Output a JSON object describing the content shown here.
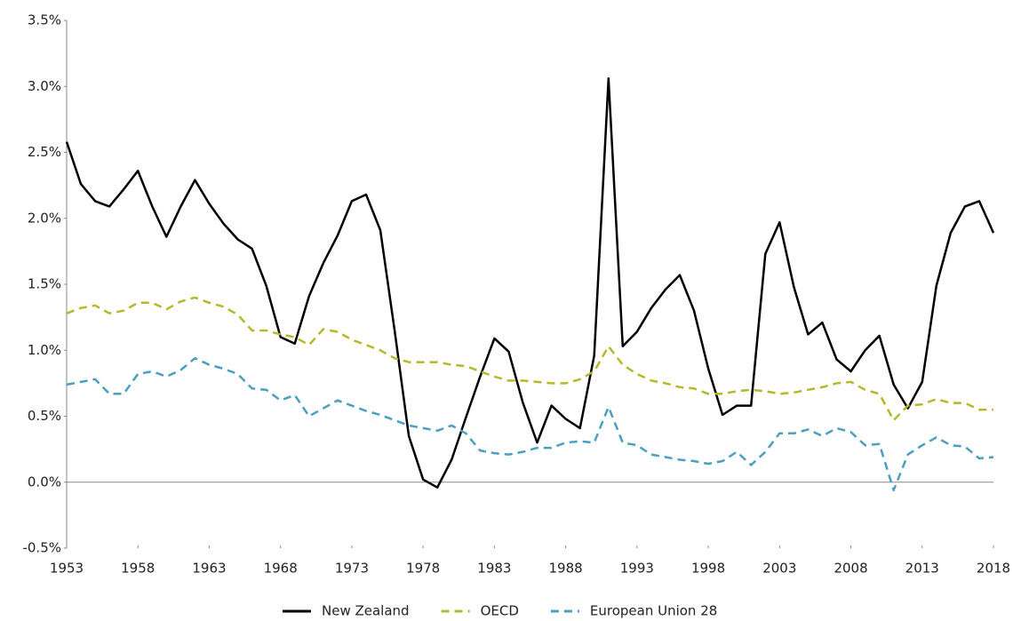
{
  "chart_data": {
    "type": "line",
    "x": [
      1953,
      1954,
      1955,
      1956,
      1957,
      1958,
      1959,
      1960,
      1961,
      1962,
      1963,
      1964,
      1965,
      1966,
      1967,
      1968,
      1969,
      1970,
      1971,
      1972,
      1973,
      1974,
      1975,
      1976,
      1977,
      1978,
      1979,
      1980,
      1981,
      1982,
      1983,
      1984,
      1985,
      1986,
      1987,
      1988,
      1989,
      1990,
      1991,
      1992,
      1993,
      1994,
      1995,
      1996,
      1997,
      1998,
      1999,
      2000,
      2001,
      2002,
      2003,
      2004,
      2005,
      2006,
      2007,
      2008,
      2009,
      2010,
      2011,
      2012,
      2013,
      2014,
      2015,
      2016,
      2017,
      2018
    ],
    "series": [
      {
        "name": "New Zealand",
        "color": "#000000",
        "dash": false,
        "values": [
          2.58,
          2.26,
          2.13,
          2.09,
          2.22,
          2.36,
          2.09,
          1.86,
          2.09,
          2.29,
          2.11,
          1.96,
          1.84,
          1.77,
          1.49,
          1.1,
          1.05,
          1.41,
          1.66,
          1.87,
          2.13,
          2.18,
          1.91,
          1.15,
          0.35,
          0.02,
          -0.04,
          0.17,
          0.49,
          0.8,
          1.09,
          0.99,
          0.6,
          0.3,
          0.58,
          0.48,
          0.41,
          0.96,
          3.06,
          1.03,
          1.14,
          1.32,
          1.46,
          1.57,
          1.3,
          0.86,
          0.51,
          0.58,
          0.58,
          1.73,
          1.97,
          1.48,
          1.12,
          1.21,
          0.93,
          0.84,
          1.0,
          1.11,
          0.74,
          0.56,
          0.76,
          1.49,
          1.89,
          2.09,
          2.13,
          1.89
        ]
      },
      {
        "name": "OECD",
        "color": "#b5b82a",
        "dash": true,
        "values": [
          1.28,
          1.32,
          1.34,
          1.28,
          1.3,
          1.36,
          1.36,
          1.31,
          1.37,
          1.4,
          1.36,
          1.33,
          1.27,
          1.15,
          1.15,
          1.12,
          1.1,
          1.04,
          1.16,
          1.14,
          1.08,
          1.04,
          1.0,
          0.94,
          0.91,
          0.91,
          0.91,
          0.89,
          0.88,
          0.84,
          0.8,
          0.77,
          0.77,
          0.76,
          0.75,
          0.75,
          0.78,
          0.84,
          1.03,
          0.89,
          0.82,
          0.77,
          0.75,
          0.72,
          0.71,
          0.67,
          0.67,
          0.69,
          0.7,
          0.69,
          0.67,
          0.68,
          0.7,
          0.72,
          0.75,
          0.76,
          0.7,
          0.67,
          0.47,
          0.58,
          0.59,
          0.63,
          0.6,
          0.6,
          0.55,
          0.55
        ]
      },
      {
        "name": "European Union 28",
        "color": "#4a9fc0",
        "dash": true,
        "values": [
          0.74,
          0.76,
          0.78,
          0.67,
          0.67,
          0.82,
          0.84,
          0.8,
          0.85,
          0.94,
          0.89,
          0.86,
          0.82,
          0.71,
          0.7,
          0.62,
          0.66,
          0.5,
          0.56,
          0.62,
          0.58,
          0.54,
          0.51,
          0.47,
          0.43,
          0.41,
          0.39,
          0.43,
          0.37,
          0.24,
          0.22,
          0.21,
          0.23,
          0.26,
          0.26,
          0.3,
          0.31,
          0.3,
          0.57,
          0.3,
          0.28,
          0.21,
          0.19,
          0.17,
          0.16,
          0.14,
          0.16,
          0.23,
          0.13,
          0.23,
          0.37,
          0.37,
          0.4,
          0.35,
          0.41,
          0.38,
          0.28,
          0.29,
          -0.06,
          0.21,
          0.28,
          0.34,
          0.28,
          0.27,
          0.18,
          0.19
        ]
      }
    ],
    "xlim": [
      1953,
      2018
    ],
    "xticks": [
      1953,
      1958,
      1963,
      1968,
      1973,
      1978,
      1983,
      1988,
      1993,
      1998,
      2003,
      2008,
      2013,
      2018
    ],
    "ylim": [
      -0.5,
      3.5
    ],
    "yticks": [
      {
        "value": -0.5,
        "label": "-0.5%"
      },
      {
        "value": 0,
        "label": "0.0%"
      },
      {
        "value": 0.5,
        "label": "0.5%"
      },
      {
        "value": 1,
        "label": "1.0%"
      },
      {
        "value": 1.5,
        "label": "1.5%"
      },
      {
        "value": 2,
        "label": "2.0%"
      },
      {
        "value": 2.5,
        "label": "2.5%"
      },
      {
        "value": 3,
        "label": "3.0%"
      },
      {
        "value": 3.5,
        "label": "3.5%"
      }
    ],
    "legend": "bottom"
  }
}
